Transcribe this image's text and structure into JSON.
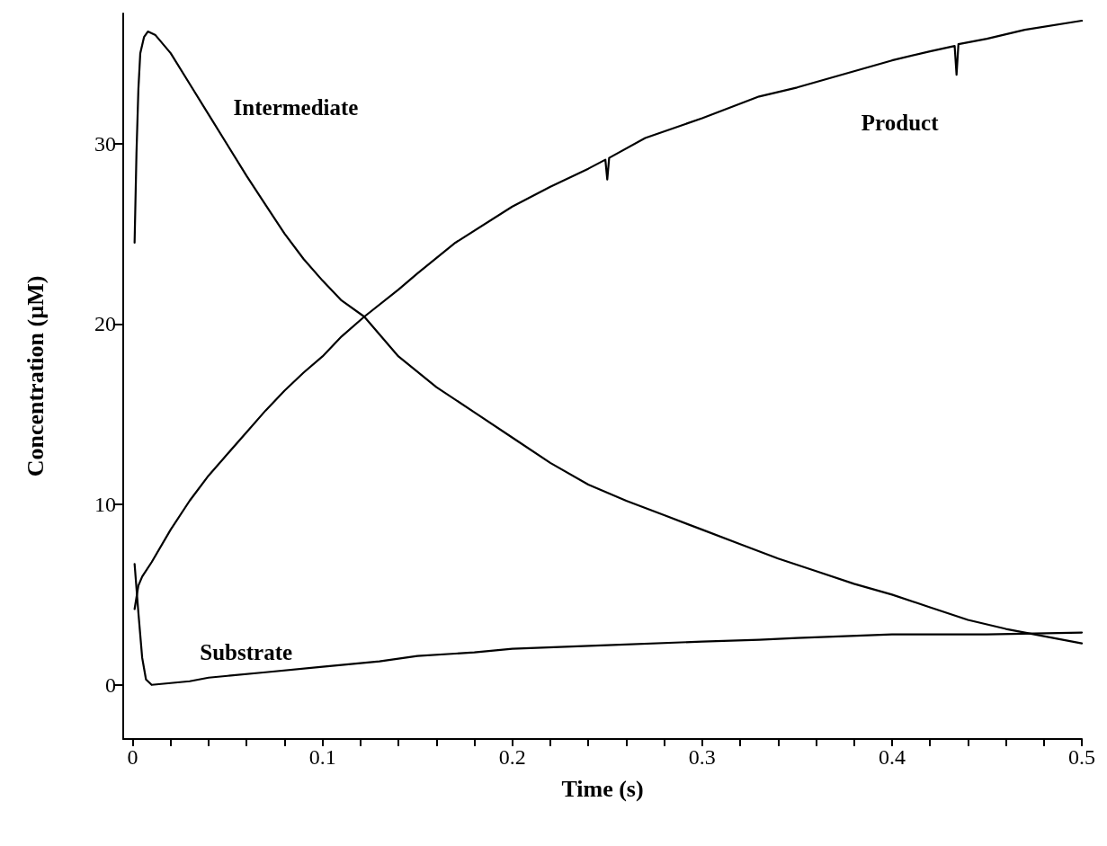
{
  "chart_data": {
    "type": "line",
    "xlabel": "Time (s)",
    "ylabel": "Concentration (µM)",
    "xlim": [
      -0.005,
      0.5
    ],
    "ylim": [
      -3,
      37.2
    ],
    "xticks": [
      0,
      {
        "value": 0.02,
        "label": null
      },
      {
        "value": 0.04,
        "label": null
      },
      {
        "value": 0.06,
        "label": null
      },
      {
        "value": 0.08,
        "label": null
      },
      0.1,
      {
        "value": 0.12,
        "label": null
      },
      {
        "value": 0.14,
        "label": null
      },
      {
        "value": 0.16,
        "label": null
      },
      {
        "value": 0.18,
        "label": null
      },
      0.2,
      {
        "value": 0.22,
        "label": null
      },
      {
        "value": 0.24,
        "label": null
      },
      {
        "value": 0.26,
        "label": null
      },
      {
        "value": 0.28,
        "label": null
      },
      0.3,
      {
        "value": 0.32,
        "label": null
      },
      {
        "value": 0.34,
        "label": null
      },
      {
        "value": 0.36,
        "label": null
      },
      {
        "value": 0.38,
        "label": null
      },
      0.4,
      {
        "value": 0.42,
        "label": null
      },
      {
        "value": 0.44,
        "label": null
      },
      {
        "value": 0.46,
        "label": null
      },
      {
        "value": 0.48,
        "label": null
      },
      0.5
    ],
    "yticks": [
      0,
      10,
      20,
      30
    ],
    "grid": false,
    "legend": false,
    "marker": "none",
    "line_style": "solid",
    "series": [
      {
        "name": "Intermediate",
        "color": "#000000",
        "x": [
          0.001,
          0.002,
          0.003,
          0.004,
          0.006,
          0.008,
          0.012,
          0.02,
          0.03,
          0.04,
          0.05,
          0.06,
          0.07,
          0.08,
          0.09,
          0.1,
          0.11,
          0.122,
          0.14,
          0.16,
          0.18,
          0.2,
          0.22,
          0.24,
          0.26,
          0.28,
          0.3,
          0.32,
          0.34,
          0.36,
          0.38,
          0.4,
          0.42,
          0.44,
          0.46,
          0.48,
          0.5
        ],
        "values": [
          24.5,
          29.5,
          33,
          35,
          35.9,
          36.2,
          36,
          35,
          33.3,
          31.6,
          29.9,
          28.2,
          26.6,
          25,
          23.6,
          22.4,
          21.3,
          20.4,
          18.2,
          16.5,
          15.1,
          13.7,
          12.3,
          11.1,
          10.2,
          9.4,
          8.6,
          7.8,
          7,
          6.3,
          5.6,
          5,
          4.3,
          3.6,
          3.1,
          2.7,
          2.3
        ]
      },
      {
        "name": "Product",
        "color": "#000000",
        "x": [
          0.001,
          0.003,
          0.005,
          0.01,
          0.02,
          0.03,
          0.04,
          0.05,
          0.06,
          0.07,
          0.08,
          0.09,
          0.1,
          0.11,
          0.122,
          0.14,
          0.15,
          0.17,
          0.2,
          0.22,
          0.24,
          0.249,
          0.25,
          0.251,
          0.27,
          0.3,
          0.33,
          0.35,
          0.38,
          0.4,
          0.42,
          0.433,
          0.434,
          0.435,
          0.45,
          0.47,
          0.5
        ],
        "values": [
          4.2,
          5.5,
          6,
          6.8,
          8.6,
          10.2,
          11.6,
          12.8,
          14,
          15.2,
          16.3,
          17.3,
          18.2,
          19.3,
          20.4,
          21.9,
          22.8,
          24.5,
          26.5,
          27.6,
          28.6,
          29.1,
          28,
          29.2,
          30.3,
          31.4,
          32.6,
          33.1,
          34,
          34.6,
          35.1,
          35.4,
          33.8,
          35.5,
          35.8,
          36.3,
          36.8
        ]
      },
      {
        "name": "Substrate",
        "color": "#000000",
        "x": [
          0.001,
          0.003,
          0.005,
          0.007,
          0.01,
          0.02,
          0.03,
          0.04,
          0.05,
          0.07,
          0.1,
          0.13,
          0.15,
          0.18,
          0.2,
          0.25,
          0.3,
          0.33,
          0.35,
          0.4,
          0.45,
          0.5
        ],
        "values": [
          6.7,
          4,
          1.5,
          0.3,
          0,
          0.1,
          0.2,
          0.4,
          0.5,
          0.7,
          1,
          1.3,
          1.6,
          1.8,
          2,
          2.2,
          2.4,
          2.5,
          2.6,
          2.8,
          2.8,
          2.9
        ]
      }
    ]
  }
}
